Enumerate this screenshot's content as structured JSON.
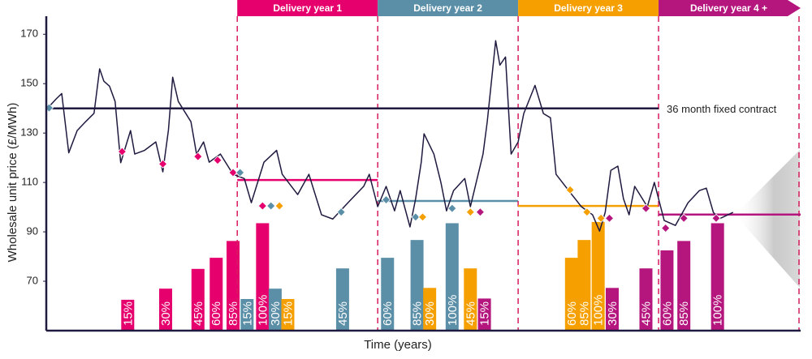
{
  "chart_data": {
    "type": "line",
    "x_label": "Time (years)",
    "y_label": "Wholesale unit price (£/MWh)",
    "xlim": [
      -1.36,
      4
    ],
    "ylim": [
      50,
      176
    ],
    "yticks": [
      70,
      90,
      110,
      130,
      150,
      170
    ],
    "grid": false,
    "line": {
      "color": "#1f1a3f",
      "x": [
        -1.36,
        -1.29,
        -1.25,
        -1.2,
        -1.14,
        -1.08,
        -1.02,
        -0.98,
        -0.95,
        -0.91,
        -0.87,
        -0.83,
        -0.76,
        -0.73,
        -0.66,
        -0.58,
        -0.53,
        -0.49,
        -0.46,
        -0.42,
        -0.33,
        -0.29,
        -0.24,
        -0.2,
        -0.12,
        -0.03,
        0.05,
        0.1,
        0.19,
        0.28,
        0.32,
        0.43,
        0.51,
        0.6,
        0.68,
        0.8,
        0.9,
        0.94,
        1.0,
        1.06,
        1.12,
        1.16,
        1.23,
        1.27,
        1.31,
        1.33,
        1.4,
        1.45,
        1.49,
        1.54,
        1.62,
        1.66,
        1.75,
        1.78,
        1.81,
        1.84,
        1.87,
        1.91,
        1.95,
        2.0,
        2.04,
        2.12,
        2.18,
        2.23,
        2.27,
        2.36,
        2.45,
        2.53,
        2.58,
        2.62,
        2.66,
        2.71,
        2.75,
        2.79,
        2.83,
        2.92,
        2.97,
        3.04,
        3.12,
        3.21,
        3.29,
        3.34,
        3.39,
        3.43,
        3.53
      ],
      "values": [
        139.5,
        143.8,
        146,
        122,
        131,
        134.6,
        138,
        156,
        151,
        149,
        142.8,
        118,
        131,
        121.5,
        123,
        126.4,
        114.3,
        131.3,
        152.6,
        142.8,
        134.6,
        121.5,
        126.4,
        118.2,
        121.5,
        113.3,
        111.6,
        101.8,
        118.2,
        123,
        113.3,
        105.1,
        113.3,
        96.9,
        95.2,
        102.5,
        108.4,
        113.3,
        100.2,
        108.4,
        98.5,
        106.7,
        92,
        103.4,
        118.2,
        129.7,
        121.5,
        110,
        98.5,
        106.7,
        111.6,
        100.2,
        121.5,
        134.6,
        151,
        167.4,
        157.5,
        160.8,
        121.5,
        126.4,
        137.9,
        149.3,
        137.9,
        136.2,
        113.3,
        106.7,
        100.2,
        96.9,
        90.3,
        97.9,
        114.9,
        116.6,
        103.4,
        96.9,
        108.4,
        100.2,
        110,
        94.6,
        92.6,
        101.8,
        106.7,
        107.7,
        97.9,
        95.2,
        97.9
      ]
    },
    "fixed_contract": {
      "label": "36 month fixed contract",
      "value": 140,
      "x": [
        -1.36,
        3
      ],
      "color": "#1f1a3f"
    },
    "periods": [
      {
        "name": "Delivery year 1",
        "color": "#e5006d",
        "start": 0,
        "end": 1,
        "average": 111,
        "purchases": {
          "x": [
            -0.82,
            -0.53,
            -0.28,
            -0.14,
            -0.03,
            0.18
          ],
          "values": [
            122.5,
            117.5,
            120.5,
            119,
            114,
            100.5
          ]
        },
        "bars": {
          "x": [
            -0.78,
            -0.51,
            -0.28,
            -0.15,
            -0.03,
            0.18
          ],
          "values": [
            62.5,
            67,
            75,
            79.5,
            86.3,
            93.5
          ],
          "labels": [
            "15%",
            "30%",
            "45%",
            "60%",
            "85%",
            "100%"
          ]
        }
      },
      {
        "name": "Delivery year 2",
        "color": "#5b8fa8",
        "start": 1,
        "end": 2,
        "average": 102.5,
        "purchases": {
          "x": [
            -1.34,
            0.02,
            0.24,
            0.74,
            1.06,
            1.27,
            1.53
          ],
          "values": [
            140.2,
            114,
            100.5,
            98,
            103,
            96,
            99.5
          ]
        },
        "bars": {
          "x": [
            0.07,
            0.27,
            0.75,
            1.07,
            1.28,
            1.53
          ],
          "values": [
            62.8,
            67,
            75.2,
            79.5,
            86.7,
            93.5
          ],
          "labels": [
            "15%",
            "30%",
            "45%",
            "60%",
            "85%",
            "100%"
          ]
        }
      },
      {
        "name": "Delivery year 3",
        "color": "#f5a000",
        "start": 2,
        "end": 3,
        "average": 100.5,
        "purchases": {
          "x": [
            0.3,
            1.32,
            1.66,
            2.37,
            2.49,
            2.59
          ],
          "values": [
            100.5,
            96,
            98,
            107,
            98,
            95.5
          ]
        },
        "bars": {
          "x": [
            0.36,
            1.37,
            1.66,
            2.38,
            2.47,
            2.57
          ],
          "values": [
            62.8,
            67.3,
            75.2,
            79.5,
            86.7,
            94
          ],
          "labels": [
            "15%",
            "30%",
            "45%",
            "60%",
            "85%",
            "100%"
          ]
        }
      },
      {
        "name": "Delivery year 4 +",
        "color": "#b5167e",
        "start": 3,
        "end": 4,
        "average": 97,
        "purchases": {
          "x": [
            1.73,
            2.65,
            2.91,
            3.05,
            3.18,
            3.41
          ],
          "values": [
            98,
            95.5,
            99.5,
            91.5,
            95.5,
            95.5
          ]
        },
        "bars": {
          "x": [
            1.76,
            2.67,
            2.91,
            3.06,
            3.18,
            3.42
          ],
          "values": [
            63,
            67.3,
            75.2,
            82.5,
            86.3,
            93.5
          ],
          "labels": [
            "15%",
            "30%",
            "45%",
            "60%",
            "85%",
            "100%"
          ]
        }
      }
    ]
  }
}
